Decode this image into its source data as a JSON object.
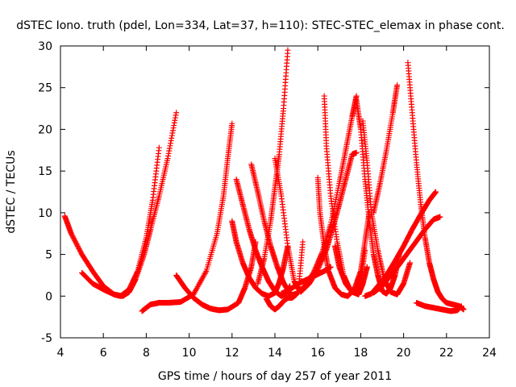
{
  "chart_data": {
    "type": "scatter",
    "title": "dSTEC Iono. truth (pdel, Lon=334, Lat=37, h=110): STEC-STEC_elemax in phase cont.",
    "xlabel": "GPS time / hours of day 257 of year 2011",
    "ylabel": "dSTEC  / TECUs",
    "xlim": [
      4,
      24
    ],
    "ylim": [
      -5,
      30
    ],
    "x_ticks": [
      4,
      6,
      8,
      10,
      12,
      14,
      16,
      18,
      20,
      22,
      24
    ],
    "y_ticks": [
      -5,
      0,
      5,
      10,
      15,
      20,
      25,
      30
    ],
    "grid": false,
    "legend": "none",
    "marker": "plus",
    "color": "#ff0000",
    "series": [
      {
        "x": [
          4.2,
          4.5,
          5.0,
          5.5,
          6.0,
          6.5,
          6.8,
          7.2,
          7.6,
          8.0,
          8.3,
          8.6
        ],
        "y": [
          9.6,
          7.5,
          5.0,
          3.0,
          1.2,
          0.2,
          0.0,
          0.8,
          3.0,
          7.0,
          11.5,
          17.8
        ]
      },
      {
        "x": [
          5.0,
          5.5,
          6.0,
          6.5,
          6.9,
          7.2,
          7.5,
          7.9,
          8.2,
          8.6,
          9.0,
          9.4
        ],
        "y": [
          2.8,
          1.5,
          0.8,
          0.2,
          0.0,
          0.5,
          2.0,
          5.0,
          8.0,
          12.0,
          16.5,
          22.0
        ]
      },
      {
        "x": [
          7.8,
          8.2,
          8.6,
          9.0,
          9.6,
          10.2,
          10.8,
          11.3,
          11.6,
          11.8,
          12.0
        ],
        "y": [
          -1.8,
          -1.0,
          -0.8,
          -0.8,
          -0.7,
          0.2,
          3.0,
          7.5,
          12.0,
          16.5,
          20.7
        ]
      },
      {
        "x": [
          9.4,
          9.8,
          10.2,
          10.6,
          11.0,
          11.4,
          11.8,
          12.3,
          12.6,
          12.9,
          13.1
        ],
        "y": [
          2.5,
          1.0,
          -0.2,
          -1.0,
          -1.5,
          -1.7,
          -1.6,
          -0.8,
          1.0,
          3.5,
          6.5
        ]
      },
      {
        "x": [
          12.0,
          12.2,
          12.5,
          12.8,
          13.1,
          13.4,
          13.7,
          14.0,
          14.2,
          14.4,
          14.6
        ],
        "y": [
          9.0,
          6.5,
          4.0,
          2.2,
          1.0,
          0.3,
          0.0,
          0.4,
          1.6,
          3.5,
          6.0
        ]
      },
      {
        "x": [
          12.2,
          12.5,
          12.8,
          13.1,
          13.4,
          13.7,
          14.0,
          14.3,
          14.5,
          14.7
        ],
        "y": [
          14.0,
          11.0,
          8.0,
          5.5,
          3.5,
          1.8,
          0.6,
          0.0,
          0.3,
          1.2
        ]
      },
      {
        "x": [
          12.9,
          13.2,
          13.5,
          13.8,
          14.1,
          14.4,
          14.7,
          14.9
        ],
        "y": [
          15.8,
          12.5,
          9.0,
          6.0,
          3.6,
          1.6,
          0.3,
          0.0
        ]
      },
      {
        "x": [
          13.6,
          13.8,
          14.0,
          14.2,
          14.4,
          14.6,
          14.8,
          15.0
        ],
        "y": [
          -0.3,
          -1.2,
          -1.6,
          -1.2,
          -0.6,
          -0.2,
          -0.2,
          0.2
        ]
      },
      {
        "x": [
          13.2,
          13.5,
          13.8,
          14.0,
          14.2,
          14.4,
          14.6
        ],
        "y": [
          1.5,
          4.5,
          9.0,
          13.0,
          17.0,
          22.5,
          29.5
        ]
      },
      {
        "x": [
          14.0,
          14.3,
          14.6,
          14.9,
          15.1,
          15.3
        ],
        "y": [
          16.5,
          12.0,
          6.0,
          1.8,
          0.8,
          6.5
        ]
      },
      {
        "x": [
          14.3,
          14.7,
          15.1,
          15.5,
          15.9,
          16.3,
          16.6
        ],
        "y": [
          0.3,
          0.8,
          1.5,
          2.0,
          2.5,
          3.0,
          3.5
        ]
      },
      {
        "x": [
          14.6,
          15.0,
          15.4,
          15.8,
          16.2,
          16.6,
          17.0,
          17.3,
          17.6,
          17.8
        ],
        "y": [
          0.0,
          0.3,
          1.2,
          2.8,
          5.2,
          8.6,
          13.5,
          17.5,
          21.5,
          24.0
        ]
      },
      {
        "x": [
          15.2,
          15.6,
          16.0,
          16.4,
          16.7,
          17.0,
          17.3,
          17.6,
          17.8
        ],
        "y": [
          0.5,
          1.5,
          3.2,
          5.6,
          8.2,
          11.0,
          14.0,
          17.0,
          17.2
        ]
      },
      {
        "x": [
          16.0,
          16.1,
          16.3,
          16.5,
          16.8,
          17.1,
          17.4,
          17.7,
          18.0,
          18.2,
          18.4
        ],
        "y": [
          14.2,
          10.0,
          6.0,
          3.0,
          1.0,
          0.2,
          0.0,
          0.8,
          3.0,
          6.5,
          10.0
        ]
      },
      {
        "x": [
          16.3,
          16.4,
          16.6,
          16.9,
          17.2,
          17.5,
          17.8,
          18.0,
          18.2
        ],
        "y": [
          24.0,
          18.0,
          12.0,
          6.5,
          2.5,
          0.8,
          0.5,
          2.0,
          5.5
        ]
      },
      {
        "x": [
          16.8,
          17.0,
          17.3,
          17.6,
          17.9,
          18.1,
          18.3
        ],
        "y": [
          6.0,
          3.5,
          1.5,
          0.5,
          0.2,
          1.5,
          3.5
        ]
      },
      {
        "x": [
          17.8,
          18.0,
          18.2,
          18.4,
          18.6,
          18.8,
          19.0,
          19.2,
          19.4,
          19.6,
          19.8
        ],
        "y": [
          23.5,
          20.0,
          14.0,
          9.0,
          5.0,
          2.5,
          0.6,
          0.3,
          1.0,
          2.5,
          5.0
        ]
      },
      {
        "x": [
          18.1,
          18.3,
          18.5,
          18.8,
          19.1,
          19.4,
          19.7,
          20.0,
          20.3
        ],
        "y": [
          21.0,
          16.0,
          10.0,
          5.5,
          2.0,
          0.5,
          0.2,
          1.5,
          4.0
        ]
      },
      {
        "x": [
          18.6,
          18.9,
          19.2,
          19.5,
          19.7
        ],
        "y": [
          10.0,
          13.5,
          17.5,
          22.0,
          25.3
        ]
      },
      {
        "x": [
          18.2,
          18.5,
          18.8,
          19.2,
          19.6,
          20.0,
          20.4,
          20.8,
          21.2,
          21.5
        ],
        "y": [
          0.0,
          0.3,
          1.2,
          2.5,
          4.2,
          6.0,
          8.0,
          9.8,
          11.5,
          12.5
        ]
      },
      {
        "x": [
          18.6,
          19.0,
          19.4,
          19.8,
          20.2,
          20.6,
          21.0,
          21.4,
          21.7
        ],
        "y": [
          0.4,
          1.2,
          2.5,
          3.8,
          5.2,
          6.6,
          8.0,
          9.2,
          9.5
        ]
      },
      {
        "x": [
          20.2,
          20.4,
          20.6,
          20.8,
          21.0,
          21.2,
          21.4,
          21.6,
          21.8,
          22.0,
          22.3,
          22.6,
          22.8
        ],
        "y": [
          28.0,
          22.0,
          16.0,
          11.0,
          7.0,
          4.0,
          2.0,
          0.5,
          -0.3,
          -0.8,
          -1.0,
          -1.2,
          -1.6
        ]
      },
      {
        "x": [
          20.6,
          21.0,
          21.4,
          21.8,
          22.2,
          22.5,
          22.7
        ],
        "y": [
          -0.8,
          -1.2,
          -1.4,
          -1.6,
          -1.8,
          -1.7,
          -1.2
        ]
      }
    ]
  }
}
